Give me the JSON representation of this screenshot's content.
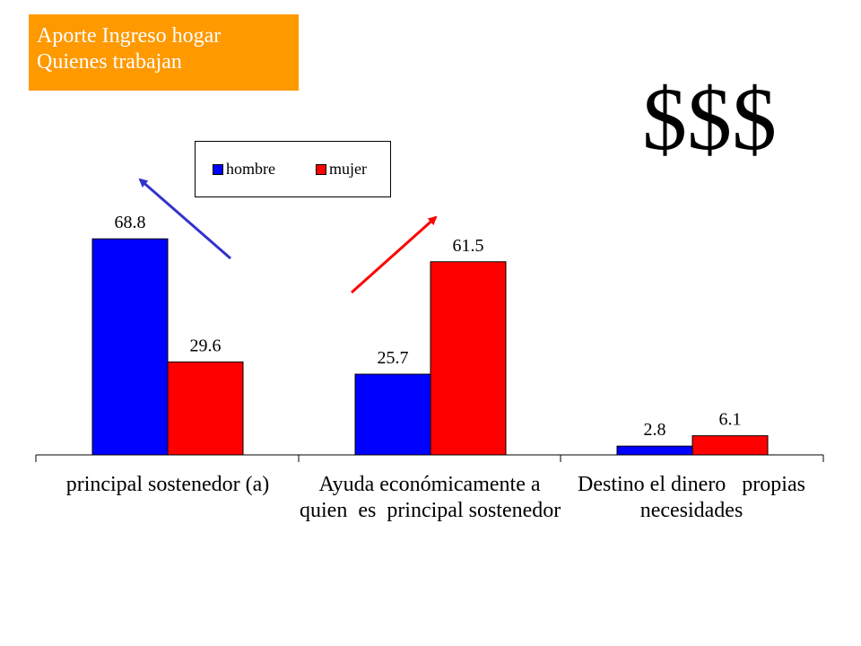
{
  "header": {
    "title_line1": "Aporte Ingreso hogar",
    "title_line2": "Quienes trabajan",
    "title_bg": "#ff9900",
    "title_color": "#ffffff"
  },
  "decoration": {
    "dollar_text": "$$$"
  },
  "chart_data": {
    "type": "bar",
    "categories": [
      [
        "principal sostenedor (a)"
      ],
      [
        "Ayuda económicamente a",
        "quien  es  principal sostenedor"
      ],
      [
        "Destino el dinero   propias",
        "necesidades"
      ]
    ],
    "series": [
      {
        "name": "hombre",
        "color": "#0000ff",
        "values": [
          68.8,
          25.7,
          2.8
        ]
      },
      {
        "name": "mujer",
        "color": "#ff0000",
        "values": [
          29.6,
          61.5,
          6.1
        ]
      }
    ],
    "ylim": [
      0,
      80
    ],
    "grid": false,
    "legend_position": "top-center",
    "annotations": [
      {
        "type": "arrow",
        "color": "#3333cc",
        "direction": "up-left",
        "near_category": 0
      },
      {
        "type": "arrow",
        "color": "#ff0000",
        "direction": "up-right",
        "near_category": 1
      }
    ]
  }
}
